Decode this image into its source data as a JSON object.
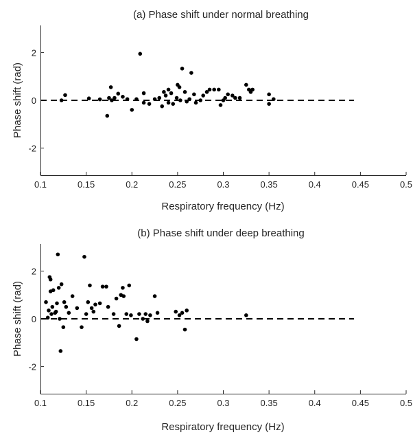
{
  "chart_data": [
    {
      "type": "scatter",
      "title": "(a) Phase shift under normal breathing",
      "xlabel": "Respiratory frequency (Hz)",
      "ylabel": "Phase shift (rad)",
      "xlim": [
        0.1,
        0.5
      ],
      "ylim": [
        -3.14,
        3.14
      ],
      "xticks": [
        0.1,
        0.15,
        0.2,
        0.25,
        0.3,
        0.35,
        0.4,
        0.45,
        0.5
      ],
      "xtick_labels": [
        "0.1",
        "0.15",
        "0.2",
        "0.25",
        "0.3",
        "0.35",
        "0.4",
        "0.45",
        "0.5"
      ],
      "yticks": [
        -2,
        0,
        2
      ],
      "ytick_labels": [
        "-2",
        "0",
        "2"
      ],
      "reference_line": {
        "y": 0,
        "x_range": [
          0.1,
          0.443
        ],
        "style": "dashed"
      },
      "grid": false,
      "points": [
        [
          0.123,
          0.0
        ],
        [
          0.127,
          0.22
        ],
        [
          0.153,
          0.08
        ],
        [
          0.165,
          0.04
        ],
        [
          0.173,
          -0.65
        ],
        [
          0.175,
          0.1
        ],
        [
          0.177,
          0.55
        ],
        [
          0.178,
          0.0
        ],
        [
          0.181,
          0.1
        ],
        [
          0.185,
          0.28
        ],
        [
          0.19,
          0.15
        ],
        [
          0.195,
          0.05
        ],
        [
          0.2,
          -0.4
        ],
        [
          0.205,
          0.05
        ],
        [
          0.209,
          1.95
        ],
        [
          0.213,
          0.3
        ],
        [
          0.213,
          -0.1
        ],
        [
          0.219,
          -0.15
        ],
        [
          0.225,
          0.05
        ],
        [
          0.23,
          0.1
        ],
        [
          0.233,
          -0.25
        ],
        [
          0.235,
          0.35
        ],
        [
          0.237,
          0.2
        ],
        [
          0.24,
          0.45
        ],
        [
          0.24,
          -0.1
        ],
        [
          0.243,
          0.3
        ],
        [
          0.245,
          -0.15
        ],
        [
          0.249,
          0.1
        ],
        [
          0.25,
          0.65
        ],
        [
          0.252,
          0.55
        ],
        [
          0.253,
          0.0
        ],
        [
          0.255,
          1.33
        ],
        [
          0.258,
          0.35
        ],
        [
          0.26,
          -0.05
        ],
        [
          0.263,
          0.05
        ],
        [
          0.265,
          1.15
        ],
        [
          0.268,
          0.25
        ],
        [
          0.27,
          -0.1
        ],
        [
          0.275,
          0.0
        ],
        [
          0.278,
          0.2
        ],
        [
          0.282,
          0.35
        ],
        [
          0.285,
          0.45
        ],
        [
          0.29,
          0.45
        ],
        [
          0.295,
          0.45
        ],
        [
          0.297,
          -0.2
        ],
        [
          0.3,
          0.0
        ],
        [
          0.302,
          0.1
        ],
        [
          0.305,
          0.25
        ],
        [
          0.31,
          0.2
        ],
        [
          0.313,
          0.1
        ],
        [
          0.318,
          0.1
        ],
        [
          0.325,
          0.65
        ],
        [
          0.328,
          0.45
        ],
        [
          0.33,
          0.35
        ],
        [
          0.332,
          0.45
        ],
        [
          0.35,
          0.25
        ],
        [
          0.35,
          -0.15
        ],
        [
          0.355,
          0.05
        ]
      ]
    },
    {
      "type": "scatter",
      "title": "(b) Phase shift under deep breathing",
      "xlabel": "Respiratory frequency (Hz)",
      "ylabel": "Phase shift (rad)",
      "xlim": [
        0.1,
        0.5
      ],
      "ylim": [
        -3.14,
        3.14
      ],
      "xticks": [
        0.1,
        0.15,
        0.2,
        0.25,
        0.3,
        0.35,
        0.4,
        0.45,
        0.5
      ],
      "xtick_labels": [
        "0.1",
        "0.15",
        "0.2",
        "0.25",
        "0.3",
        "0.35",
        "0.4",
        "0.45",
        "0.5"
      ],
      "yticks": [
        -2,
        0,
        2
      ],
      "ytick_labels": [
        "-2",
        "0",
        "2"
      ],
      "reference_line": {
        "y": 0,
        "x_range": [
          0.1,
          0.443
        ],
        "style": "dashed"
      },
      "grid": false,
      "points": [
        [
          0.106,
          0.7
        ],
        [
          0.108,
          0.05
        ],
        [
          0.109,
          0.35
        ],
        [
          0.11,
          1.75
        ],
        [
          0.111,
          1.65
        ],
        [
          0.111,
          1.15
        ],
        [
          0.112,
          0.2
        ],
        [
          0.113,
          0.5
        ],
        [
          0.114,
          1.2
        ],
        [
          0.116,
          0.25
        ],
        [
          0.117,
          0.3
        ],
        [
          0.118,
          0.65
        ],
        [
          0.119,
          2.7
        ],
        [
          0.12,
          1.3
        ],
        [
          0.121,
          0.0
        ],
        [
          0.122,
          -1.35
        ],
        [
          0.123,
          1.45
        ],
        [
          0.125,
          -0.35
        ],
        [
          0.126,
          0.7
        ],
        [
          0.128,
          0.5
        ],
        [
          0.131,
          0.25
        ],
        [
          0.135,
          0.95
        ],
        [
          0.14,
          0.45
        ],
        [
          0.145,
          -0.35
        ],
        [
          0.148,
          2.6
        ],
        [
          0.15,
          0.2
        ],
        [
          0.152,
          0.7
        ],
        [
          0.154,
          1.4
        ],
        [
          0.156,
          0.45
        ],
        [
          0.158,
          0.3
        ],
        [
          0.16,
          0.6
        ],
        [
          0.165,
          0.65
        ],
        [
          0.168,
          1.35
        ],
        [
          0.172,
          1.35
        ],
        [
          0.174,
          0.5
        ],
        [
          0.18,
          0.2
        ],
        [
          0.183,
          0.85
        ],
        [
          0.186,
          -0.3
        ],
        [
          0.188,
          1.0
        ],
        [
          0.19,
          1.3
        ],
        [
          0.191,
          0.95
        ],
        [
          0.194,
          0.2
        ],
        [
          0.197,
          1.4
        ],
        [
          0.199,
          0.15
        ],
        [
          0.205,
          -0.85
        ],
        [
          0.208,
          0.2
        ],
        [
          0.212,
          0.0
        ],
        [
          0.215,
          0.2
        ],
        [
          0.217,
          -0.1
        ],
        [
          0.22,
          0.15
        ],
        [
          0.225,
          0.95
        ],
        [
          0.228,
          0.25
        ],
        [
          0.248,
          0.3
        ],
        [
          0.252,
          0.15
        ],
        [
          0.255,
          0.25
        ],
        [
          0.258,
          -0.45
        ],
        [
          0.26,
          0.35
        ],
        [
          0.325,
          0.15
        ]
      ]
    }
  ]
}
